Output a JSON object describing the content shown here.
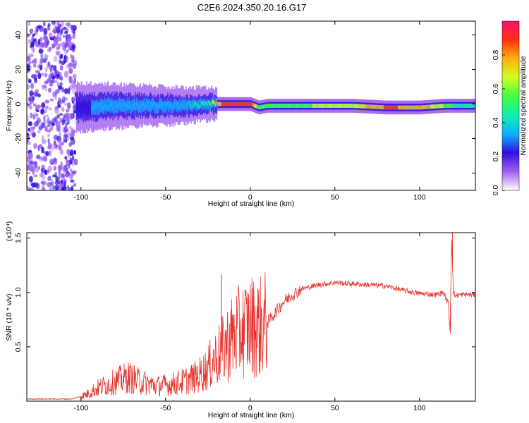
{
  "title": "C2E6.2024.350.20.16.G17",
  "colors": {
    "snr_line": "#e8332e",
    "colormap": [
      "#ffffff",
      "#a060f0",
      "#3010e0",
      "#10b0ff",
      "#10f0b0",
      "#40ff40",
      "#d0ff20",
      "#ffb010",
      "#ff3010",
      "#ff1070"
    ]
  },
  "chart_data": [
    {
      "type": "heatmap",
      "xlabel": "Height of straight line (km)",
      "ylabel": "Frequency (Hz)",
      "xlim": [
        -132,
        133
      ],
      "ylim": [
        -50,
        48
      ],
      "x_ticks": [
        -100,
        -50,
        0,
        50,
        100
      ],
      "x_tick_labels": [
        "-100",
        "-50",
        "0",
        "50",
        "100"
      ],
      "y_ticks": [
        -40,
        -20,
        0,
        20,
        40
      ],
      "y_tick_labels": [
        "-40",
        "-20",
        "0",
        "20",
        "40"
      ],
      "colorbar": {
        "label": "Normalized spectral amplitude",
        "range": [
          0,
          1
        ],
        "ticks": [
          0.0,
          0.2,
          0.4,
          0.6,
          0.8
        ],
        "tick_labels": [
          "0.0",
          "0.2",
          "0.4",
          "0.6",
          "0.8"
        ]
      },
      "ridge": {
        "x": [
          -100,
          -80,
          -60,
          -40,
          -25,
          -20,
          -10,
          0,
          5,
          10,
          30,
          60,
          80,
          100,
          115,
          120,
          133
        ],
        "center_hz": [
          -2,
          -1,
          -1,
          -1,
          0,
          0,
          0,
          0,
          -2,
          -1,
          -1,
          -1,
          -2,
          -2,
          -1,
          -1,
          -1
        ],
        "peak_amplitude": [
          0.25,
          0.35,
          0.35,
          0.35,
          0.5,
          0.8,
          0.95,
          0.9,
          0.5,
          0.55,
          0.6,
          0.65,
          0.85,
          0.8,
          0.6,
          0.5,
          0.4
        ]
      },
      "noise_region_x": [
        -132,
        -103
      ]
    },
    {
      "type": "line",
      "xlabel": "Height of straight line (km)",
      "ylabel": "SNR (10 * v/v)",
      "y_scale_note": "(x10⁴)",
      "xlim": [
        -132,
        133
      ],
      "ylim": [
        0,
        1.55
      ],
      "x_ticks": [
        -100,
        -50,
        0,
        50,
        100
      ],
      "x_tick_labels": [
        "-100",
        "-50",
        "0",
        "50",
        "100"
      ],
      "y_ticks": [
        0.5,
        1.0,
        1.5
      ],
      "y_tick_labels": [
        "0.5",
        "1.0",
        "1.5"
      ],
      "series": [
        {
          "x": [
            -132,
            -105,
            -97,
            -90,
            -80,
            -72,
            -65,
            -55,
            -48,
            -40,
            -32,
            -25,
            -22,
            -19,
            -15,
            -10,
            -5,
            0,
            5,
            10,
            15,
            20,
            25,
            30,
            40,
            50,
            60,
            70,
            80,
            90,
            100,
            110,
            114,
            117,
            118,
            119,
            120,
            121,
            125,
            133
          ],
          "values": [
            0.02,
            0.02,
            0.06,
            0.12,
            0.18,
            0.22,
            0.18,
            0.14,
            0.15,
            0.18,
            0.22,
            0.3,
            0.38,
            0.42,
            0.5,
            0.6,
            0.65,
            0.7,
            0.68,
            0.72,
            0.82,
            0.92,
            0.98,
            1.03,
            1.07,
            1.09,
            1.08,
            1.07,
            1.06,
            1.02,
            0.99,
            0.98,
            1.0,
            0.9,
            0.65,
            1.5,
            1.0,
            0.97,
            0.98,
            0.98
          ]
        }
      ],
      "spikes": [
        {
          "x": -17,
          "value": 1.17
        },
        {
          "x": 119.5,
          "value": 1.58
        },
        {
          "x": 118.3,
          "value": 0.62
        }
      ]
    }
  ]
}
